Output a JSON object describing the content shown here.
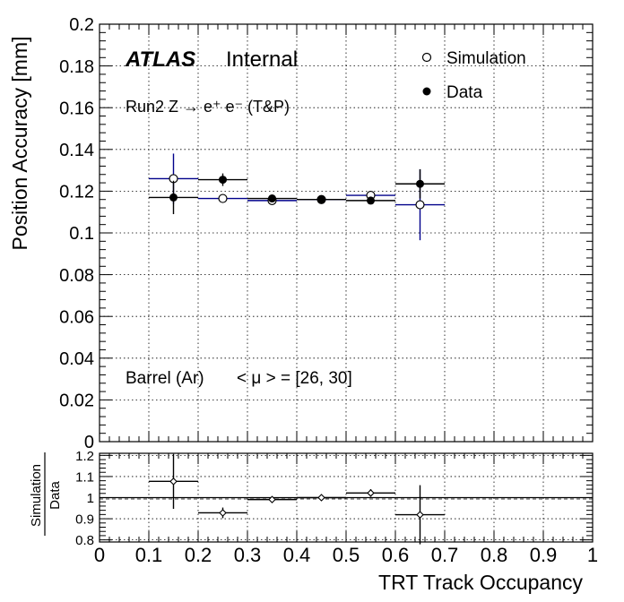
{
  "chart_data": [
    {
      "type": "scatter",
      "title": "",
      "xlabel": "",
      "ylabel": "Position Accuracy [mm]",
      "xlim": [
        0,
        1
      ],
      "ylim": [
        0,
        0.2
      ],
      "grid": true,
      "legend_position": "top-right",
      "annotations": {
        "atlas": "ATLAS",
        "internal": "Internal",
        "process": "Run2 Z → e⁺ e⁻ (T&P)",
        "region": "Barrel (Ar)",
        "pileup": "< μ > = [26, 30]"
      },
      "series": [
        {
          "name": "Simulation",
          "marker": "open-circle",
          "color": "#00008b",
          "x": [
            0.15,
            0.25,
            0.35,
            0.45,
            0.55,
            0.65
          ],
          "xerr": [
            0.05,
            0.05,
            0.05,
            0.05,
            0.05,
            0.05
          ],
          "y": [
            0.126,
            0.1165,
            0.1155,
            0.116,
            0.118,
            0.1135
          ],
          "yerr": [
            0.012,
            0.002,
            0.0015,
            0.001,
            0.002,
            0.017
          ]
        },
        {
          "name": "Data",
          "marker": "filled-circle",
          "color": "#000000",
          "x": [
            0.15,
            0.25,
            0.35,
            0.45,
            0.55,
            0.65
          ],
          "xerr": [
            0.05,
            0.05,
            0.05,
            0.05,
            0.05,
            0.05
          ],
          "y": [
            0.117,
            0.1255,
            0.1165,
            0.116,
            0.1155,
            0.1235
          ],
          "yerr": [
            0.008,
            0.003,
            0.0015,
            0.001,
            0.0015,
            0.007
          ]
        }
      ],
      "yticks": [
        "0",
        "0.02",
        "0.04",
        "0.06",
        "0.08",
        "0.1",
        "0.12",
        "0.14",
        "0.16",
        "0.18",
        "0.2"
      ]
    },
    {
      "type": "scatter",
      "title": "",
      "xlabel": "TRT Track Occupancy",
      "ylabel_top": "Simulation",
      "ylabel_bottom": "Data",
      "xlim": [
        0,
        1
      ],
      "ylim": [
        0.79,
        1.21
      ],
      "grid": true,
      "reference_line": 1,
      "series": [
        {
          "name": "",
          "marker": "open-diamond",
          "x": [
            0.15,
            0.25,
            0.35,
            0.45,
            0.55,
            0.65
          ],
          "xerr": [
            0.05,
            0.05,
            0.05,
            0.05,
            0.05,
            0.05
          ],
          "y": [
            1.077,
            0.928,
            0.991,
            1.0,
            1.022,
            0.919
          ],
          "yerr": [
            0.13,
            0.025,
            0.012,
            0.008,
            0.018,
            0.14
          ]
        }
      ],
      "yticks": [
        "0.8",
        "0.9",
        "1",
        "1.1",
        "1.2"
      ],
      "xticks": [
        "0",
        "0.1",
        "0.2",
        "0.3",
        "0.4",
        "0.5",
        "0.6",
        "0.7",
        "0.8",
        "0.9",
        "1"
      ]
    }
  ]
}
